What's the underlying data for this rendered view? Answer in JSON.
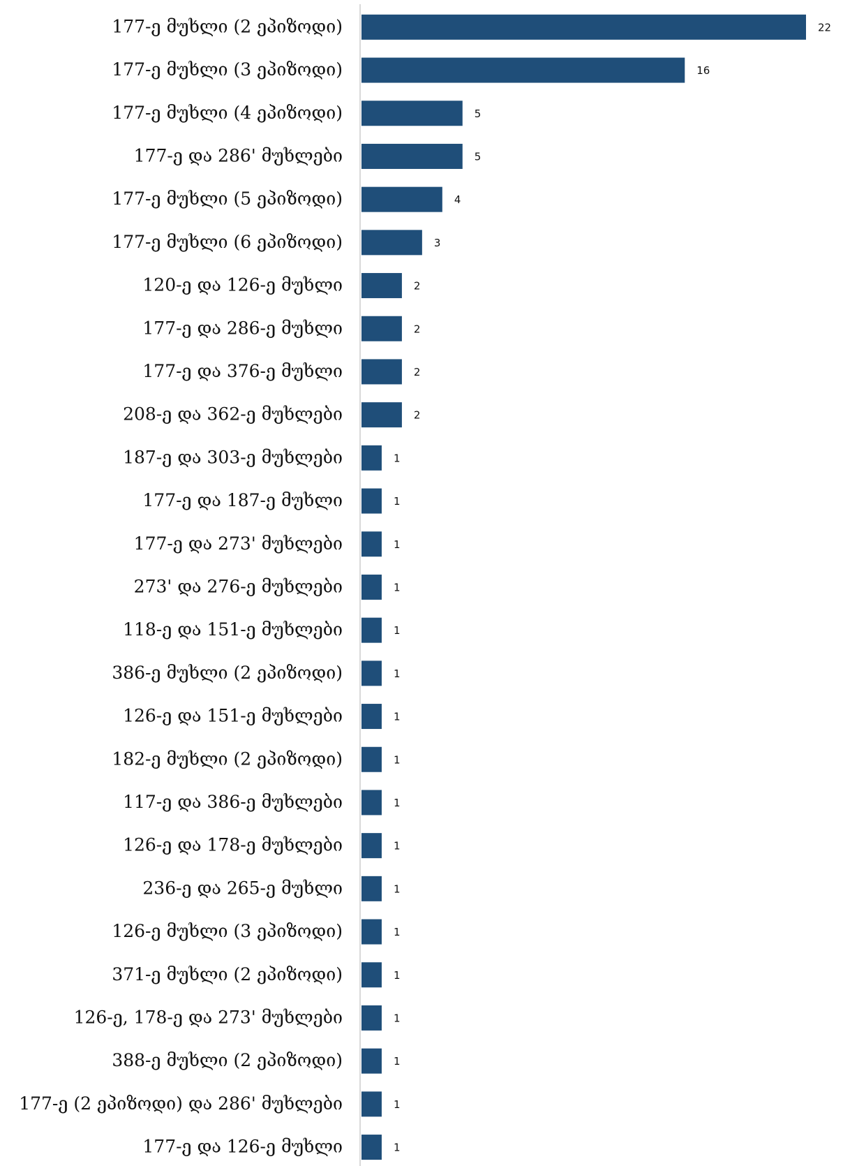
{
  "chart_data": {
    "type": "bar",
    "orientation": "horizontal",
    "categories": [
      "177-ე მუხლი (2 ეპიზოდი)",
      "177-ე მუხლი (3 ეპიზოდი)",
      "177-ე მუხლი (4 ეპიზოდი)",
      "177-ე და 286' მუხლები",
      "177-ე მუხლი (5 ეპიზოდი)",
      "177-ე მუხლი (6 ეპიზოდი)",
      "120-ე და 126-ე მუხლი",
      "177-ე და 286-ე მუხლი",
      "177-ე და 376-ე მუხლი",
      "208-ე და 362-ე მუხლები",
      "187-ე და 303-ე მუხლები",
      "177-ე და 187-ე მუხლი",
      "177-ე და 273' მუხლები",
      "273' და 276-ე მუხლები",
      "118-ე და 151-ე მუხლები",
      "386-ე მუხლი (2 ეპიზოდი)",
      "126-ე და 151-ე მუხლები",
      "182-ე მუხლი (2 ეპიზოდი)",
      "117-ე და 386-ე მუხლები",
      "126-ე და 178-ე მუხლები",
      "236-ე და 265-ე მუხლი",
      "126-ე მუხლი (3 ეპიზოდი)",
      "371-ე მუხლი (2 ეპიზოდი)",
      "126-ე, 178-ე და 273' მუხლები",
      "388-ე მუხლი (2 ეპიზოდი)",
      "177-ე (2 ეპიზოდი) და 286' მუხლები",
      "177-ე და 126-ე მუხლი"
    ],
    "values": [
      22,
      16,
      5,
      5,
      4,
      3,
      2,
      2,
      2,
      2,
      1,
      1,
      1,
      1,
      1,
      1,
      1,
      1,
      1,
      1,
      1,
      1,
      1,
      1,
      1,
      1,
      1
    ],
    "title": "",
    "xlabel": "",
    "ylabel": "",
    "xlim": [
      0,
      22
    ],
    "grid": false,
    "legend": "none",
    "data_labels": true,
    "colors": {
      "bar": "#1F4E79",
      "axis": "#D9D9D9",
      "text": "#111111"
    }
  }
}
